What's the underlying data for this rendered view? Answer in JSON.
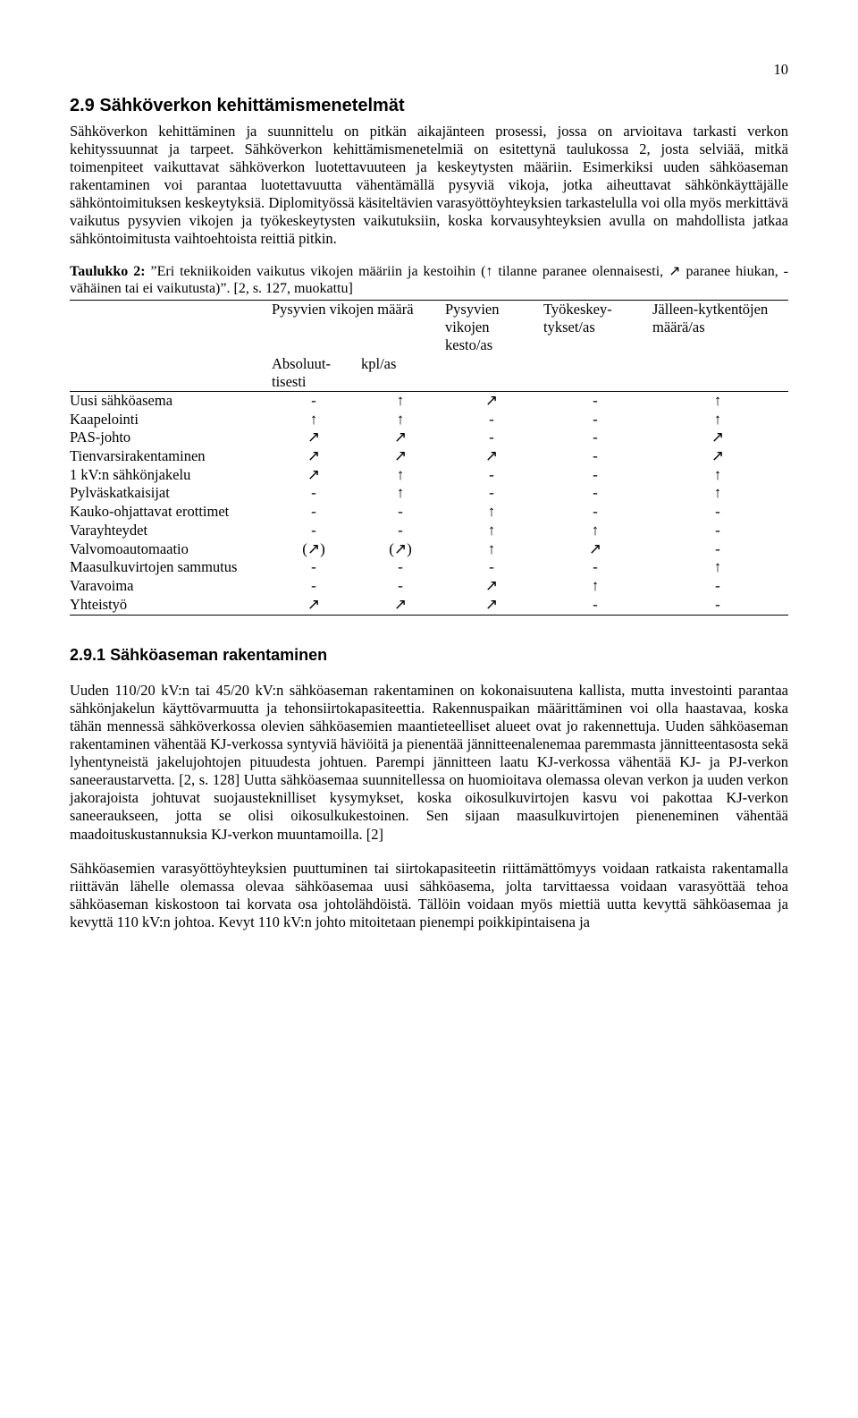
{
  "page_number": "10",
  "section": {
    "number": "2.9",
    "title": "Sähköverkon kehittämismenetelmät",
    "paragraph": "Sähköverkon kehittäminen ja suunnittelu on pitkän aikajänteen prosessi, jossa on arvioitava tarkasti verkon kehityssuunnat ja tarpeet. Sähköverkon kehittämismenetelmiä on esitettynä taulukossa 2, josta selviää, mitkä toimenpiteet vaikuttavat sähköverkon luotettavuuteen ja keskeytysten määriin. Esimerkiksi uuden sähköaseman rakentaminen voi parantaa luotettavuutta vähentämällä pysyviä vikoja, jotka aiheuttavat sähkönkäyttäjälle sähköntoimituksen keskeytyksiä. Diplomityössä käsiteltävien varasyöttöyhteyksien tarkastelulla voi olla myös merkittävä vaikutus pysyvien vikojen ja työkeskeytysten vaikutuksiin, koska korvausyhteyksien avulla on mahdollista jatkaa sähköntoimitusta vaihtoehtoista reittiä pitkin."
  },
  "table": {
    "caption_lead": "Taulukko 2:",
    "caption_rest": " ”Eri tekniikoiden vaikutus vikojen määriin ja kestoihin (↑ tilanne paranee olennaisesti, ↗ paranee hiukan, - vähäinen tai ei vaikutusta)”. [2, s. 127, muokattu]",
    "header_top": [
      "",
      "Pysyvien vikojen määrä",
      "Pysyvien vikojen kesto/as",
      "Työkeskey-tykset/as",
      "Jälleen-kytkentöjen määrä/as"
    ],
    "header_sub": [
      "",
      "Absoluut-tisesti",
      "kpl/as",
      "",
      "",
      ""
    ],
    "rows": [
      {
        "label": "Uusi sähköasema",
        "c": [
          "-",
          "↑",
          "↗",
          "-",
          "↑"
        ]
      },
      {
        "label": "Kaapelointi",
        "c": [
          "↑",
          "↑",
          "-",
          "-",
          "↑"
        ]
      },
      {
        "label": "PAS-johto",
        "c": [
          "↗",
          "↗",
          "-",
          "-",
          "↗"
        ]
      },
      {
        "label": "Tienvarsirakentaminen",
        "c": [
          "↗",
          "↗",
          "↗",
          "-",
          "↗"
        ]
      },
      {
        "label": "1 kV:n sähkönjakelu",
        "c": [
          "↗",
          "↑",
          "-",
          "-",
          "↑"
        ]
      },
      {
        "label": "Pylväskatkaisijat",
        "c": [
          "-",
          "↑",
          "-",
          "-",
          "↑"
        ]
      },
      {
        "label": "Kauko-ohjattavat erottimet",
        "c": [
          "-",
          "-",
          "↑",
          "-",
          "-"
        ]
      },
      {
        "label": "Varayhteydet",
        "c": [
          "-",
          "-",
          "↑",
          "↑",
          "-"
        ]
      },
      {
        "label": "Valvomoautomaatio",
        "c": [
          "(↗)",
          "(↗)",
          "↑",
          "↗",
          "-"
        ]
      },
      {
        "label": "Maasulkuvirtojen sammutus",
        "c": [
          "-",
          "-",
          "-",
          "-",
          "↑"
        ]
      },
      {
        "label": "Varavoima",
        "c": [
          "-",
          "-",
          "↗",
          "↑",
          "-"
        ]
      },
      {
        "label": "Yhteistyö",
        "c": [
          "↗",
          "↗",
          "↗",
          "-",
          "-"
        ]
      }
    ]
  },
  "subsection": {
    "number": "2.9.1",
    "title": "Sähköaseman rakentaminen",
    "paragraphs": [
      "Uuden 110/20 kV:n tai 45/20 kV:n sähköaseman rakentaminen on kokonaisuutena kallista, mutta investointi parantaa sähkönjakelun käyttövarmuutta ja tehonsiirtokapasiteettia. Rakennuspaikan määrittäminen voi olla haastavaa, koska tähän mennessä sähköverkossa olevien sähköasemien maantieteelliset alueet ovat jo rakennettuja. Uuden sähköaseman rakentaminen vähentää KJ-verkossa syntyviä häviöitä ja pienentää jännitteenalenemaa paremmasta jännitteentasosta sekä lyhentyneistä jakelujohtojen pituudesta johtuen. Parempi jännitteen laatu KJ-verkossa vähentää KJ- ja PJ-verkon saneeraustarvetta. [2, s. 128] Uutta sähköasemaa suunnitellessa on huomioitava olemassa olevan verkon ja uuden verkon jakorajoista johtuvat suojausteknilliset kysymykset, koska oikosulkuvirtojen kasvu voi pakottaa KJ-verkon saneeraukseen, jotta se olisi oikosulkukestoinen. Sen sijaan maasulkuvirtojen pieneneminen vähentää maadoituskustannuksia KJ-verkon muuntamoilla. [2]",
      "Sähköasemien varasyöttöyhteyksien puuttuminen tai siirtokapasiteetin riittämättömyys voidaan ratkaista rakentamalla riittävän lähelle olemassa olevaa sähköasemaa uusi sähköasema, jolta tarvittaessa voidaan varasyöttää tehoa sähköaseman kiskostoon tai korvata osa johtolähdöistä. Tällöin voidaan myös miettiä uutta kevyttä sähköasemaa ja kevyttä 110 kV:n johtoa. Kevyt 110 kV:n johto mitoitetaan pienempi poikkipintaisena ja"
    ]
  }
}
